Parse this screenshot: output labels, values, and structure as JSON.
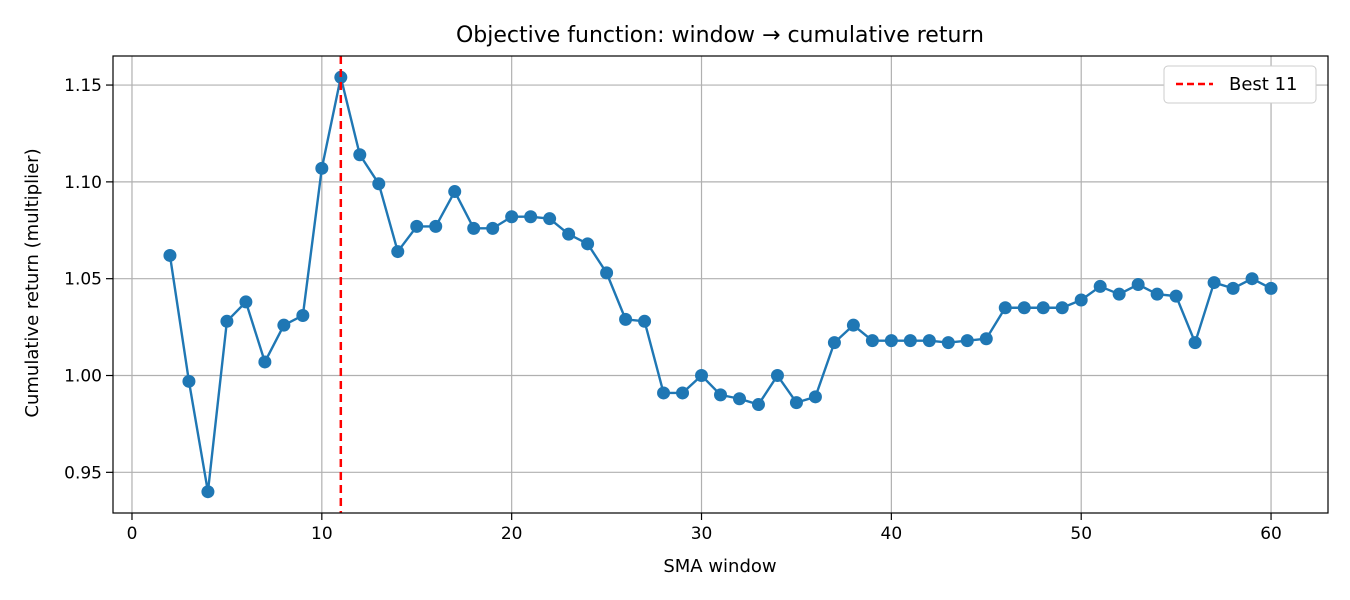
{
  "chart_data": {
    "type": "line",
    "title": "Objective function: window → cumulative return",
    "xlabel": "SMA window",
    "ylabel": "Cumulative return (multiplier)",
    "xlim": [
      -1,
      63
    ],
    "ylim": [
      0.929,
      1.165
    ],
    "xticks": [
      0,
      10,
      20,
      30,
      40,
      50,
      60
    ],
    "yticks": [
      0.95,
      1.0,
      1.05,
      1.1,
      1.15
    ],
    "ytick_labels": [
      "0.95",
      "1.00",
      "1.05",
      "1.10",
      "1.15"
    ],
    "grid": true,
    "series": [
      {
        "color": "#1f77b4",
        "marker": "circle",
        "x": [
          2,
          3,
          4,
          5,
          6,
          7,
          8,
          9,
          10,
          11,
          12,
          13,
          14,
          15,
          16,
          17,
          18,
          19,
          20,
          21,
          22,
          23,
          24,
          25,
          26,
          27,
          28,
          29,
          30,
          31,
          32,
          33,
          34,
          35,
          36,
          37,
          38,
          39,
          40,
          41,
          42,
          43,
          44,
          45,
          46,
          47,
          48,
          49,
          50,
          51,
          52,
          53,
          54,
          55,
          56,
          57,
          58,
          59,
          60
        ],
        "y": [
          1.062,
          0.997,
          0.94,
          1.028,
          1.038,
          1.007,
          1.026,
          1.031,
          1.107,
          1.154,
          1.114,
          1.099,
          1.064,
          1.077,
          1.077,
          1.095,
          1.076,
          1.076,
          1.082,
          1.082,
          1.081,
          1.073,
          1.068,
          1.053,
          1.029,
          1.028,
          0.991,
          0.991,
          1.0,
          0.99,
          0.988,
          0.985,
          1.0,
          0.986,
          0.989,
          1.017,
          1.026,
          1.018,
          1.018,
          1.018,
          1.018,
          1.017,
          1.018,
          1.019,
          1.035,
          1.035,
          1.035,
          1.035,
          1.039,
          1.046,
          1.042,
          1.047,
          1.042,
          1.041,
          1.017,
          1.048,
          1.045,
          1.05,
          1.045
        ]
      }
    ],
    "best_line": {
      "x": 11,
      "color": "#ff0000",
      "style": "dashed",
      "label": "Best 11"
    },
    "legend": {
      "placement": "top-right"
    }
  }
}
